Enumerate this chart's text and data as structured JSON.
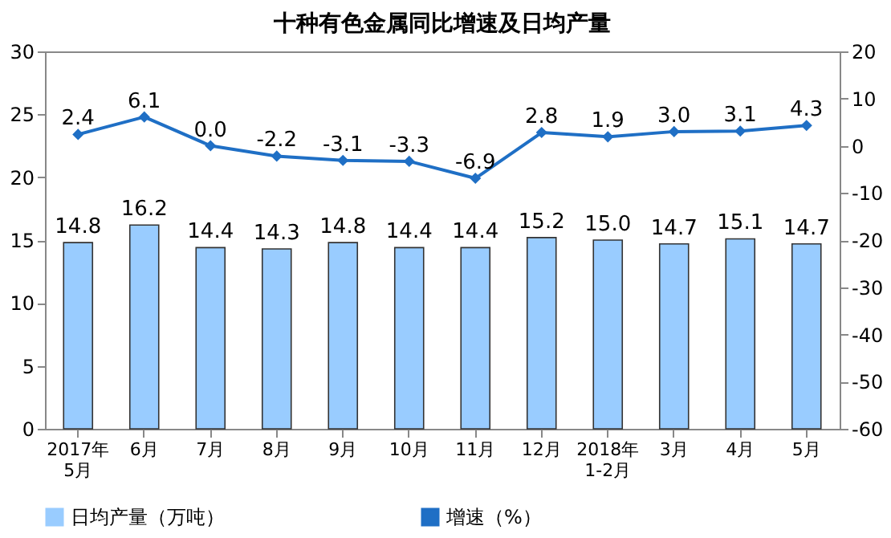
{
  "chart_data": {
    "type": "bar",
    "title": "十种有色金属同比增速及日均产量",
    "categories": [
      "2017年\n5月",
      "6月",
      "7月",
      "8月",
      "9月",
      "10月",
      "11月",
      "12月",
      "2018年\n1-2月",
      "3月",
      "4月",
      "5月"
    ],
    "series": [
      {
        "name": "日均产量（万吨）",
        "color": "#99ccff",
        "values": [
          14.8,
          16.2,
          14.4,
          14.3,
          14.8,
          14.4,
          14.4,
          15.2,
          15.0,
          14.7,
          15.1,
          14.7
        ],
        "value_labels": [
          "14.8",
          "16.2",
          "14.4",
          "14.3",
          "14.8",
          "14.4",
          "14.4",
          "15.2",
          "15.0",
          "14.7",
          "15.1",
          "14.7"
        ]
      },
      {
        "name": "增速（%）",
        "type": "line",
        "axis": "y2",
        "color": "#1f6fc5",
        "marker": "diamond",
        "values": [
          2.4,
          6.1,
          0.0,
          -2.2,
          -3.1,
          -3.3,
          -6.9,
          2.8,
          1.9,
          3.0,
          3.1,
          4.3
        ],
        "value_labels": [
          "2.4",
          "6.1",
          "0.0",
          "-2.2",
          "-3.1",
          "-3.3",
          "-6.9",
          "2.8",
          "1.9",
          "3.0",
          "3.1",
          "4.3"
        ]
      }
    ],
    "ylim": [
      0,
      30
    ],
    "yticks": [
      0,
      5,
      10,
      15,
      20,
      25,
      30
    ],
    "y2lim": [
      -60,
      20
    ],
    "y2ticks": [
      -60,
      -50,
      -40,
      -30,
      -20,
      -10,
      0,
      10,
      20
    ],
    "legend": "bottom",
    "grid": false
  }
}
